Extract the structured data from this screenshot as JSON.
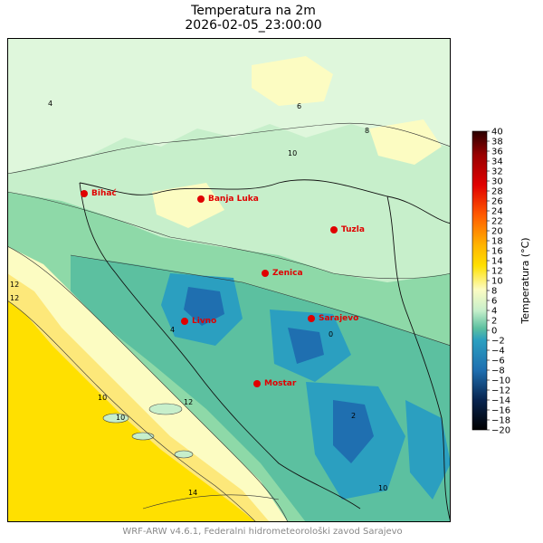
{
  "title": "Temperatura na 2m",
  "subtitle": "2026-02-05_23:00:00",
  "footer": "WRF-ARW v4.6.1, Federalni hidrometeorološki zavod Sarajevo",
  "colorbar": {
    "label": "Temperatura (°C)",
    "min": -20,
    "max": 40,
    "ticks": [
      40,
      38,
      36,
      34,
      32,
      30,
      28,
      26,
      24,
      22,
      20,
      18,
      16,
      14,
      12,
      10,
      8,
      6,
      4,
      2,
      0,
      -2,
      -4,
      -6,
      -8,
      -10,
      -12,
      -14,
      -16,
      -18,
      -20
    ]
  },
  "cities": [
    {
      "name": "Bihać",
      "color": "#e00000"
    },
    {
      "name": "Banja Luka",
      "color": "#e00000"
    },
    {
      "name": "Tuzla",
      "color": "#e00000"
    },
    {
      "name": "Zenica",
      "color": "#e00000"
    },
    {
      "name": "Livno",
      "color": "#e00000"
    },
    {
      "name": "Sarajevo",
      "color": "#e00000"
    },
    {
      "name": "Mostar",
      "color": "#e00000"
    }
  ],
  "contour_labels": [
    "4",
    "6",
    "8",
    "10",
    "12",
    "14",
    "0",
    "2"
  ]
}
